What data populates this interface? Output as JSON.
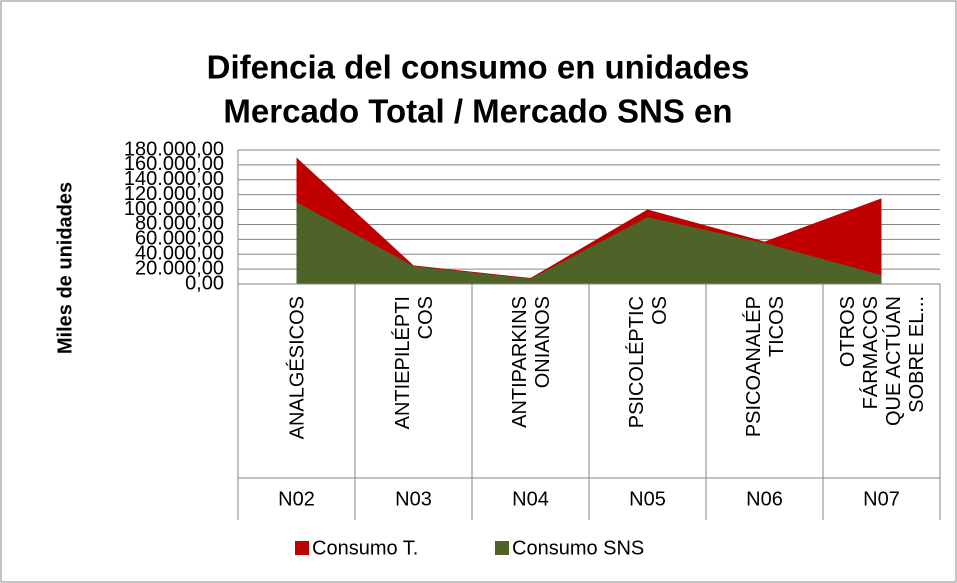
{
  "chart_data": {
    "type": "area",
    "title": "Difencia del consumo en unidades",
    "subtitle": "Mercado Total / Mercado SNS en",
    "y_label": "Miles de unidades",
    "categories": [
      "ANALGÉSICOS",
      "ANTIEPILÉPTI\nCOS",
      "ANTIPARKINS\nONIANOS",
      "PSICOLÉPTIC\nOS",
      "PSICOANALÉP\nTICOS",
      "OTROS\nFÁRMACOS\nQUE ACTÚAN\nSOBRE EL..."
    ],
    "groups": [
      "N02",
      "N03",
      "N04",
      "N05",
      "N06",
      "N07"
    ],
    "series": [
      {
        "name": "Consumo T.",
        "color": "#c00000",
        "values": [
          170000,
          25000,
          8000,
          100000,
          57000,
          115000
        ]
      },
      {
        "name": "Consumo SNS",
        "color": "#4f6228",
        "values": [
          110000,
          24000,
          7000,
          90000,
          55000,
          12000
        ]
      }
    ],
    "ylim": [
      0,
      180000
    ],
    "yticks": [
      {
        "value": 0,
        "label": "0,00"
      },
      {
        "value": 20000,
        "label": "20.000,00"
      },
      {
        "value": 40000,
        "label": "40.000,00"
      },
      {
        "value": 60000,
        "label": "60.000,00"
      },
      {
        "value": 80000,
        "label": "80.000,00"
      },
      {
        "value": 100000,
        "label": "100.000,00"
      },
      {
        "value": 120000,
        "label": "120.000,00"
      },
      {
        "value": 140000,
        "label": "140.000,00"
      },
      {
        "value": 160000,
        "label": "160.000,00"
      },
      {
        "value": 180000,
        "label": "180.000,00"
      }
    ],
    "grid": true,
    "legend": "bottom"
  }
}
